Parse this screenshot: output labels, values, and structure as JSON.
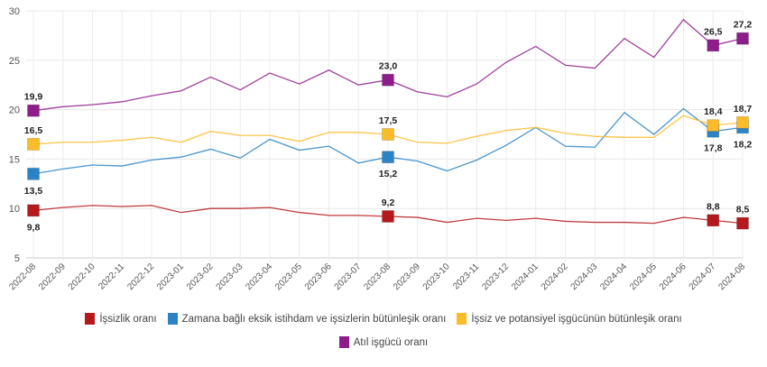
{
  "chart_data": {
    "type": "line",
    "title": "",
    "xlabel": "",
    "ylabel": "",
    "ylim": [
      5,
      30
    ],
    "yticks": [
      5,
      10,
      15,
      20,
      25,
      30
    ],
    "grid": true,
    "legend_position": "bottom",
    "categories": [
      "2022-08",
      "2022-09",
      "2022-10",
      "2022-11",
      "2022-12",
      "2023-01",
      "2023-02",
      "2023-03",
      "2023-04",
      "2023-05",
      "2023-06",
      "2023-07",
      "2023-08",
      "2023-09",
      "2023-10",
      "2023-11",
      "2023-12",
      "2024-01",
      "2024-02",
      "2024-03",
      "2024-04",
      "2024-05",
      "2024-06",
      "2024-07",
      "2024-08"
    ],
    "series": [
      {
        "name": "İşsizlik oranı",
        "color": "#b5191c",
        "values": [
          9.8,
          10.1,
          10.3,
          10.2,
          10.3,
          9.6,
          10.0,
          10.0,
          10.1,
          9.6,
          9.3,
          9.3,
          9.2,
          9.1,
          8.6,
          9.0,
          8.8,
          9.0,
          8.7,
          8.6,
          8.6,
          8.5,
          9.1,
          8.8,
          8.5
        ],
        "labels": {
          "0": "9,8",
          "12": "9,2",
          "23": "8,8",
          "24": "8,5"
        }
      },
      {
        "name": "Zamana bağlı eksik istihdam ve işsizlerin bütünleşik oranı",
        "color": "#2b83c6",
        "values": [
          13.5,
          14.0,
          14.4,
          14.3,
          14.9,
          15.2,
          16.0,
          15.1,
          17.0,
          15.9,
          16.3,
          14.6,
          15.2,
          14.8,
          13.8,
          14.9,
          16.4,
          18.2,
          16.3,
          16.2,
          19.7,
          17.5,
          20.1,
          17.8,
          18.2
        ],
        "labels": {
          "0": "13,5",
          "12": "15,2",
          "23": "17,8",
          "24": "18,2"
        }
      },
      {
        "name": "İşsiz ve potansiyel işgücünün bütünleşik oranı",
        "color": "#fbbc2a",
        "values": [
          16.5,
          16.7,
          16.7,
          16.9,
          17.2,
          16.7,
          17.8,
          17.4,
          17.4,
          16.8,
          17.7,
          17.7,
          17.5,
          16.7,
          16.6,
          17.3,
          17.9,
          18.2,
          17.6,
          17.3,
          17.2,
          17.2,
          19.4,
          18.4,
          18.7
        ],
        "labels": {
          "0": "16,5",
          "12": "17,5",
          "23": "18,4",
          "24": "18,7"
        }
      },
      {
        "name": "Atıl işgücü oranı",
        "color": "#8e1d8c",
        "values": [
          19.9,
          20.3,
          20.5,
          20.8,
          21.4,
          21.9,
          23.3,
          22.0,
          23.7,
          22.6,
          24.0,
          22.5,
          23.0,
          21.8,
          21.3,
          22.6,
          24.8,
          26.4,
          24.5,
          24.2,
          27.2,
          25.3,
          29.1,
          26.5,
          27.2
        ],
        "labels": {
          "0": "19,9",
          "12": "23,0",
          "23": "26,5",
          "24": "27,2"
        }
      }
    ]
  }
}
